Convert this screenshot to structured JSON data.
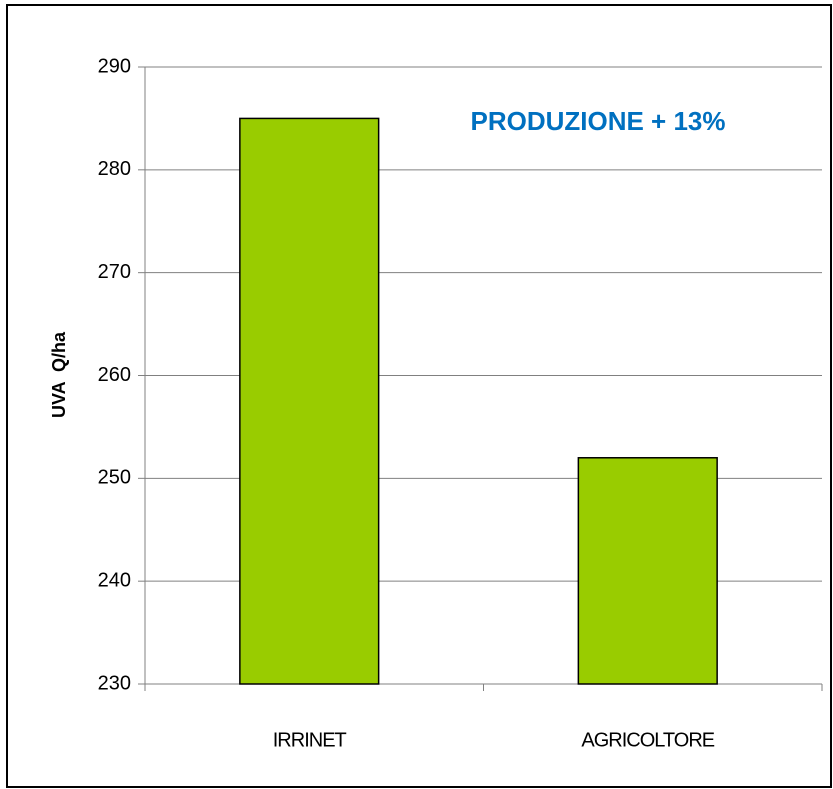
{
  "chart_data": {
    "type": "bar",
    "annotation": "PRODUZIONE  + 13%",
    "y_label": "UVA  Q/ha",
    "categories": [
      "IRRINET",
      "AGRICOLTORE"
    ],
    "values": [
      285,
      252
    ],
    "color": "#99cc00",
    "ylim": [
      230,
      290
    ],
    "yticks": [
      230,
      240,
      250,
      260,
      270,
      280,
      290
    ],
    "grid": true
  }
}
